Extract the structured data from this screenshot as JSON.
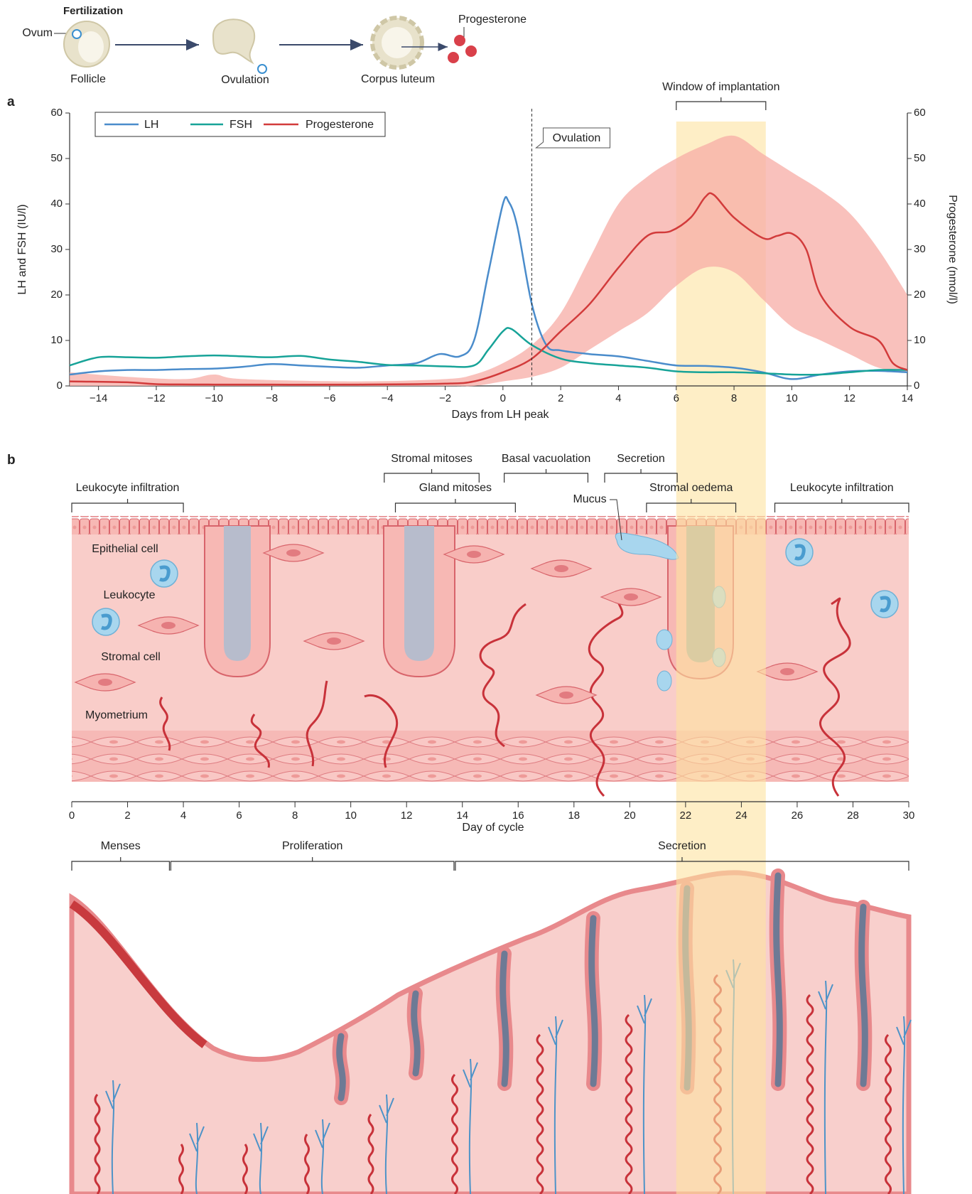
{
  "schematic": {
    "title": "Fertilization",
    "ovum": "Ovum",
    "stages": [
      "Follicle",
      "Ovulation",
      "Corpus luteum"
    ],
    "hormone": "Progesterone"
  },
  "panel_labels": [
    "a",
    "b"
  ],
  "chart_data": {
    "type": "line",
    "x_label": "Days from LH peak",
    "y_label": "LH and FSH (IU/l)",
    "y2_label": "Progesterone (nmol/l)",
    "xlim": [
      -15,
      14
    ],
    "xticks": [
      {
        "value": -14,
        "label": "−14"
      },
      {
        "value": -12,
        "label": "−12"
      },
      {
        "value": -10,
        "label": "−10"
      },
      {
        "value": -8,
        "label": "−8"
      },
      {
        "value": -6,
        "label": "−6"
      },
      {
        "value": -4,
        "label": "−4"
      },
      {
        "value": -2,
        "label": "−2"
      },
      0,
      2,
      4,
      6,
      8,
      10,
      12,
      14
    ],
    "ylim": [
      0,
      60
    ],
    "yticks": [
      0,
      10,
      20,
      30,
      40,
      50,
      60
    ],
    "y2lim": [
      0,
      60
    ],
    "y2ticks": [
      0,
      10,
      20,
      30,
      40,
      50,
      60
    ],
    "legend": "top-left",
    "series": [
      {
        "name": "LH",
        "color": "#4a8ccb",
        "x": [
          -15,
          -14,
          -13,
          -12,
          -11,
          -10,
          -9,
          -8,
          -7,
          -6,
          -5,
          -4,
          -3,
          -2.2,
          -1.5,
          -1,
          -0.5,
          0,
          0.2,
          0.5,
          1,
          1.5,
          2,
          3,
          4,
          5,
          6,
          7,
          8,
          9,
          10,
          11,
          12,
          13,
          14
        ],
        "values": [
          2.5,
          3.2,
          3.5,
          3.5,
          3.7,
          3.8,
          4.2,
          4.8,
          4.5,
          4.2,
          4,
          4.5,
          5,
          7,
          6.5,
          10,
          25,
          40,
          40.5,
          35,
          18,
          9,
          7.8,
          7,
          6.5,
          5.5,
          4.5,
          4.4,
          4,
          3,
          1.5,
          2.5,
          3.2,
          3.3,
          3
        ]
      },
      {
        "name": "FSH",
        "color": "#17a398",
        "x": [
          -15,
          -14,
          -13,
          -12,
          -11,
          -10,
          -9,
          -8,
          -7,
          -6,
          -5,
          -4,
          -3,
          -2,
          -1,
          -0.5,
          0,
          0.3,
          1,
          2,
          3,
          4,
          5,
          6,
          7,
          8,
          9,
          10,
          11,
          12,
          13,
          14
        ],
        "values": [
          4.5,
          6.3,
          6.3,
          6.2,
          6.5,
          6.7,
          6.5,
          6.3,
          6.6,
          5.8,
          5.3,
          4.6,
          4.5,
          4.3,
          4.5,
          8,
          12,
          12.5,
          9,
          6,
          5,
          4.5,
          4,
          3.2,
          3,
          3,
          2.8,
          2.5,
          2.5,
          3,
          3.5,
          3.5
        ]
      },
      {
        "name": "Progesterone",
        "color": "#d23b3b",
        "axis": "y2",
        "x": [
          -15,
          -13,
          -12,
          -10,
          -5,
          -2,
          -1,
          0,
          1,
          2,
          3,
          4,
          5,
          5.8,
          6.5,
          7,
          7.3,
          8,
          9,
          9.5,
          10,
          10.5,
          11,
          12,
          13,
          13.5,
          14
        ],
        "values": [
          1,
          0.8,
          0.4,
          0.3,
          0.3,
          0.5,
          1,
          3,
          6,
          12,
          18,
          26,
          33,
          34,
          37,
          41.5,
          42,
          37,
          32.5,
          33,
          33.5,
          30,
          20,
          13,
          10,
          5,
          3.5
        ],
        "range": {
          "color": "#f7aca6",
          "x": [
            -15,
            -13,
            -11,
            -10,
            -9,
            -5,
            -2,
            -1,
            0,
            1,
            2,
            3,
            4,
            5,
            6,
            7,
            8,
            9,
            10,
            11,
            12,
            13,
            14
          ],
          "lower": [
            0,
            0,
            0,
            0,
            0,
            0,
            0,
            0,
            1,
            2,
            4,
            8,
            12,
            16,
            22,
            26,
            25,
            19,
            13,
            10,
            7,
            4,
            3
          ],
          "upper": [
            3,
            2,
            1.5,
            2.5,
            1.5,
            1,
            1.5,
            2.5,
            5,
            9,
            16,
            28,
            40,
            46,
            50,
            53,
            55,
            51,
            47,
            43,
            38,
            30,
            20
          ]
        }
      }
    ],
    "annotations": [
      {
        "text": "Ovulation",
        "x": 1
      }
    ],
    "window": {
      "label": "Window of implantation",
      "x": [
        6,
        9.1
      ],
      "color": "#fde3a0"
    }
  },
  "panel_b": {
    "brackets": [
      {
        "label": "Leukocyte infiltration",
        "range": [
          0,
          4
        ]
      },
      {
        "label": "Stromal mitoses",
        "range": [
          11.2,
          14.6
        ]
      },
      {
        "label": "Gland mitoses",
        "range": [
          11.6,
          15.9
        ]
      },
      {
        "label": "Basal vacuolation",
        "range": [
          15.5,
          18.5
        ]
      },
      {
        "label": "Secretion",
        "range": [
          19.1,
          21.7
        ]
      },
      {
        "label": "Stromal oedema",
        "range": [
          20.6,
          23.8
        ]
      },
      {
        "label": "Leukocyte infiltration",
        "range": [
          25.2,
          30
        ]
      }
    ],
    "cell_labels": [
      "Epithelial cell",
      "Leukocyte",
      "Stromal cell",
      "Myometrium",
      "Mucus"
    ],
    "cycle_axis": {
      "label": "Day of cycle",
      "xlim": [
        0,
        30
      ],
      "xticks": [
        0,
        2,
        4,
        6,
        8,
        10,
        12,
        14,
        16,
        18,
        20,
        22,
        24,
        26,
        28,
        30
      ]
    },
    "phases": [
      {
        "label": "Menses",
        "range": [
          0,
          3.5
        ]
      },
      {
        "label": "Proliferation",
        "range": [
          3.55,
          13.7
        ]
      },
      {
        "label": "Secretion",
        "range": [
          13.75,
          30
        ]
      }
    ]
  }
}
